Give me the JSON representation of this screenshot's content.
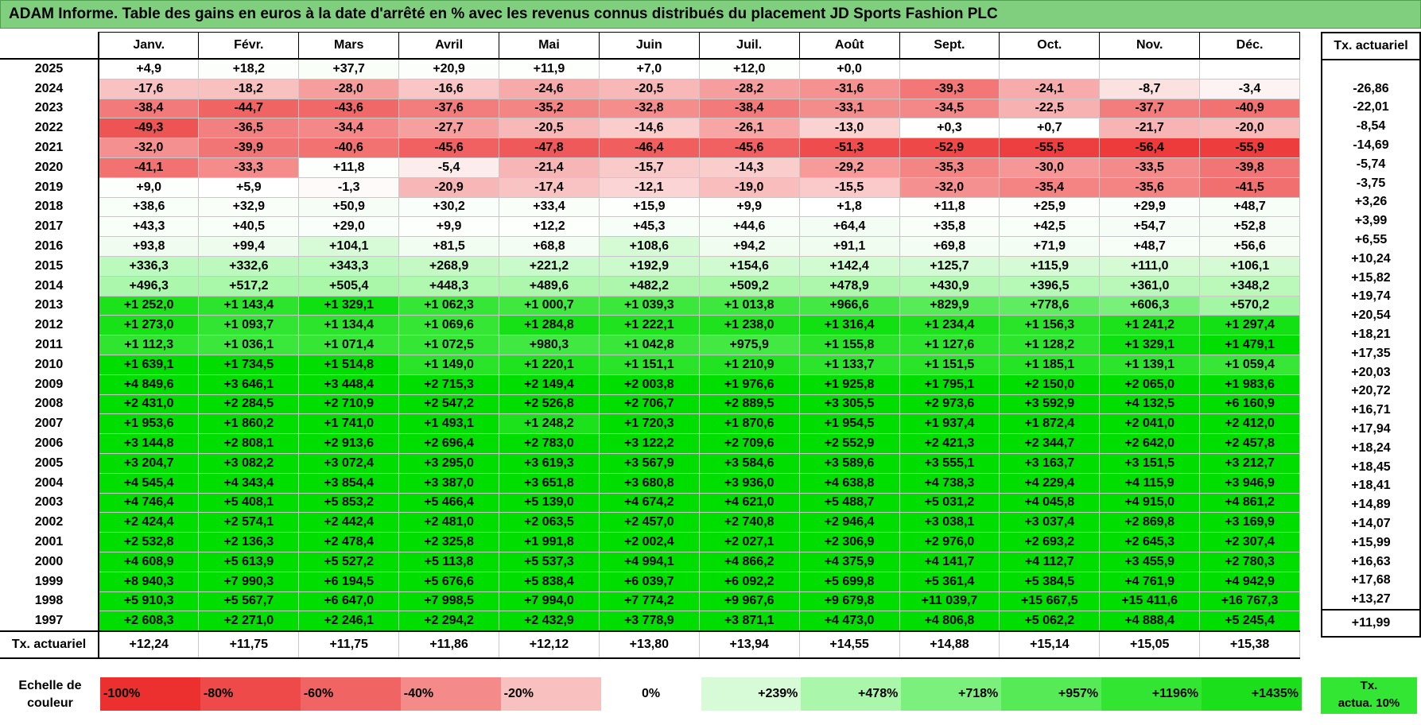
{
  "title": "ADAM Informe. Table des gains en euros à la date d'arrêté en % avec les revenus connus distribués du placement JD Sports Fashion PLC",
  "months": [
    "Janv.",
    "Févr.",
    "Mars",
    "Avril",
    "Mai",
    "Juin",
    "Juil.",
    "Août",
    "Sept.",
    "Oct.",
    "Nov.",
    "Déc."
  ],
  "tx_header": "Tx. actuariel",
  "avg_label": "Tx. actuariel",
  "rows": [
    {
      "year": "2025",
      "v": [
        4.9,
        18.2,
        37.7,
        20.9,
        11.9,
        7.0,
        12.0,
        0.0,
        null,
        null,
        null,
        null
      ],
      "tx": ""
    },
    {
      "year": "2024",
      "v": [
        -17.6,
        -18.2,
        -28.0,
        -16.6,
        -24.6,
        -20.5,
        -28.2,
        -31.6,
        -39.3,
        -24.1,
        -8.7,
        -3.4
      ],
      "tx": "-26,86"
    },
    {
      "year": "2023",
      "v": [
        -38.4,
        -44.7,
        -43.6,
        -37.6,
        -35.2,
        -32.8,
        -38.4,
        -33.1,
        -34.5,
        -22.5,
        -37.7,
        -40.9
      ],
      "tx": "-22,01"
    },
    {
      "year": "2022",
      "v": [
        -49.3,
        -36.5,
        -34.4,
        -27.7,
        -20.5,
        -14.6,
        -26.1,
        -13.0,
        0.3,
        0.7,
        -21.7,
        -20.0
      ],
      "tx": "-8,54"
    },
    {
      "year": "2021",
      "v": [
        -32.0,
        -39.9,
        -40.6,
        -45.6,
        -47.8,
        -46.4,
        -45.6,
        -51.3,
        -52.9,
        -55.5,
        -56.4,
        -55.9
      ],
      "tx": "-14,69"
    },
    {
      "year": "2020",
      "v": [
        -41.1,
        -33.3,
        11.8,
        -5.4,
        -21.4,
        -15.7,
        -14.3,
        -29.2,
        -35.3,
        -30.0,
        -33.5,
        -39.8
      ],
      "tx": "-5,74"
    },
    {
      "year": "2019",
      "v": [
        9.0,
        5.9,
        -1.3,
        -20.9,
        -17.4,
        -12.1,
        -19.0,
        -15.5,
        -32.0,
        -35.4,
        -35.6,
        -41.5
      ],
      "tx": "-3,75"
    },
    {
      "year": "2018",
      "v": [
        38.6,
        32.9,
        50.9,
        30.2,
        33.4,
        15.9,
        9.9,
        1.8,
        11.8,
        25.9,
        29.9,
        48.7
      ],
      "tx": "+3,26"
    },
    {
      "year": "2017",
      "v": [
        43.3,
        40.5,
        29.0,
        9.9,
        12.2,
        45.3,
        44.6,
        64.4,
        35.8,
        42.5,
        54.7,
        52.8
      ],
      "tx": "+3,99"
    },
    {
      "year": "2016",
      "v": [
        93.8,
        99.4,
        104.1,
        81.5,
        68.8,
        108.6,
        94.2,
        91.1,
        69.8,
        71.9,
        48.7,
        56.6
      ],
      "tx": "+6,55"
    },
    {
      "year": "2015",
      "v": [
        336.3,
        332.6,
        343.3,
        268.9,
        221.2,
        192.9,
        154.6,
        142.4,
        125.7,
        115.9,
        111.0,
        106.1
      ],
      "tx": "+10,24"
    },
    {
      "year": "2014",
      "v": [
        496.3,
        517.2,
        505.4,
        448.3,
        489.6,
        482.2,
        509.2,
        478.9,
        430.9,
        396.5,
        361.0,
        348.2
      ],
      "tx": "+15,82"
    },
    {
      "year": "2013",
      "v": [
        1252.0,
        1143.4,
        1329.1,
        1062.3,
        1000.7,
        1039.3,
        1013.8,
        966.6,
        829.9,
        778.6,
        606.3,
        570.2
      ],
      "tx": "+19,74"
    },
    {
      "year": "2012",
      "v": [
        1273.0,
        1093.7,
        1134.4,
        1069.6,
        1284.8,
        1222.1,
        1238.0,
        1316.4,
        1234.4,
        1156.3,
        1241.2,
        1297.4
      ],
      "tx": "+20,54"
    },
    {
      "year": "2011",
      "v": [
        1112.3,
        1036.1,
        1071.4,
        1072.5,
        980.3,
        1042.8,
        975.9,
        1155.8,
        1127.6,
        1128.2,
        1329.1,
        1479.1
      ],
      "tx": "+18,21"
    },
    {
      "year": "2010",
      "v": [
        1639.1,
        1734.5,
        1514.8,
        1149.0,
        1220.1,
        1151.1,
        1210.9,
        1133.7,
        1151.5,
        1185.1,
        1139.1,
        1059.4
      ],
      "tx": "+17,35"
    },
    {
      "year": "2009",
      "v": [
        4849.6,
        3646.1,
        3448.4,
        2715.3,
        2149.4,
        2003.8,
        1976.6,
        1925.8,
        1795.1,
        2150.0,
        2065.0,
        1983.6
      ],
      "tx": "+20,03"
    },
    {
      "year": "2008",
      "v": [
        2431.0,
        2284.5,
        2710.9,
        2547.2,
        2526.8,
        2706.7,
        2889.5,
        3305.5,
        2973.6,
        3592.9,
        4132.5,
        6160.9
      ],
      "tx": "+20,72"
    },
    {
      "year": "2007",
      "v": [
        1953.6,
        1860.2,
        1741.0,
        1493.1,
        1248.2,
        1720.3,
        1870.6,
        1954.5,
        1937.4,
        1872.4,
        2041.0,
        2412.0
      ],
      "tx": "+16,71"
    },
    {
      "year": "2006",
      "v": [
        3144.8,
        2808.1,
        2913.6,
        2696.4,
        2783.0,
        3122.2,
        2709.6,
        2552.9,
        2421.3,
        2344.7,
        2642.0,
        2457.8
      ],
      "tx": "+17,94"
    },
    {
      "year": "2005",
      "v": [
        3204.7,
        3082.2,
        3072.4,
        3295.0,
        3619.3,
        3567.9,
        3584.6,
        3589.6,
        3555.1,
        3163.7,
        3151.5,
        3212.7
      ],
      "tx": "+18,24"
    },
    {
      "year": "2004",
      "v": [
        4545.4,
        4343.4,
        3854.4,
        3387.0,
        3651.8,
        3680.8,
        3936.0,
        4638.8,
        4738.3,
        4229.4,
        4115.9,
        3946.9
      ],
      "tx": "+18,45"
    },
    {
      "year": "2003",
      "v": [
        4746.4,
        5408.1,
        5853.2,
        5466.4,
        5139.0,
        4674.2,
        4621.0,
        5488.7,
        5031.2,
        4045.8,
        4915.0,
        4861.2
      ],
      "tx": "+18,41"
    },
    {
      "year": "2002",
      "v": [
        2424.4,
        2574.1,
        2442.4,
        2481.0,
        2063.5,
        2457.0,
        2740.8,
        2946.4,
        3038.1,
        3037.4,
        2869.8,
        3169.9
      ],
      "tx": "+14,89"
    },
    {
      "year": "2001",
      "v": [
        2532.8,
        2136.3,
        2478.4,
        2325.8,
        1991.8,
        2002.4,
        2027.1,
        2306.9,
        2976.0,
        2693.2,
        2645.3,
        2307.4
      ],
      "tx": "+14,07"
    },
    {
      "year": "2000",
      "v": [
        4608.9,
        5613.9,
        5527.2,
        5113.8,
        5537.3,
        4994.1,
        4866.2,
        4375.9,
        4141.7,
        4112.7,
        3455.9,
        2780.3
      ],
      "tx": "+15,99"
    },
    {
      "year": "1999",
      "v": [
        8940.3,
        7990.3,
        6194.5,
        5676.6,
        5838.4,
        6039.7,
        6092.2,
        5699.8,
        5361.4,
        5384.5,
        4761.9,
        4942.9
      ],
      "tx": "+16,63"
    },
    {
      "year": "1998",
      "v": [
        5910.3,
        5567.7,
        6647.0,
        7998.5,
        7994.0,
        7774.2,
        9967.6,
        9679.8,
        11039.7,
        15667.5,
        15411.6,
        16767.3
      ],
      "tx": "+17,68"
    },
    {
      "year": "1997",
      "v": [
        2608.3,
        2271.0,
        2246.1,
        2294.2,
        2432.9,
        3778.9,
        3871.1,
        4473.0,
        4806.8,
        5062.2,
        4888.4,
        5245.4
      ],
      "tx": "+13,27"
    }
  ],
  "averages": [
    "+12,24",
    "+11,75",
    "+11,75",
    "+11,86",
    "+12,12",
    "+13,80",
    "+13,94",
    "+14,55",
    "+14,88",
    "+15,14",
    "+15,05",
    "+15,38"
  ],
  "avg_total": "+11,99",
  "legend": {
    "label_line1": "Echelle de",
    "label_line2": "couleur",
    "steps": [
      {
        "text": "-100%",
        "color": "#ec2f2f",
        "align": "l"
      },
      {
        "text": "-80%",
        "color": "#ee4a4a",
        "align": "l"
      },
      {
        "text": "-60%",
        "color": "#f06464",
        "align": "l"
      },
      {
        "text": "-40%",
        "color": "#f48a8a",
        "align": "l"
      },
      {
        "text": "-20%",
        "color": "#f9c0c0",
        "align": "l"
      },
      {
        "text": "0%",
        "color": "#ffffff",
        "align": "c"
      },
      {
        "text": "+239%",
        "color": "#d6fbd6",
        "align": "r"
      },
      {
        "text": "+478%",
        "color": "#aaf6aa",
        "align": "r"
      },
      {
        "text": "+718%",
        "color": "#7cf07c",
        "align": "r"
      },
      {
        "text": "+957%",
        "color": "#57ea57",
        "align": "r"
      },
      {
        "text": "+1196%",
        "color": "#33e533",
        "align": "r"
      },
      {
        "text": "+1435%",
        "color": "#1bdf1b",
        "align": "r"
      }
    ],
    "tx_line1": "Tx.",
    "tx_line2": "actua. 10%"
  },
  "colors": {
    "title_bg": "#7fcf7f",
    "strong_green": "#00dd00",
    "strong_red": "#ec2f2f"
  }
}
